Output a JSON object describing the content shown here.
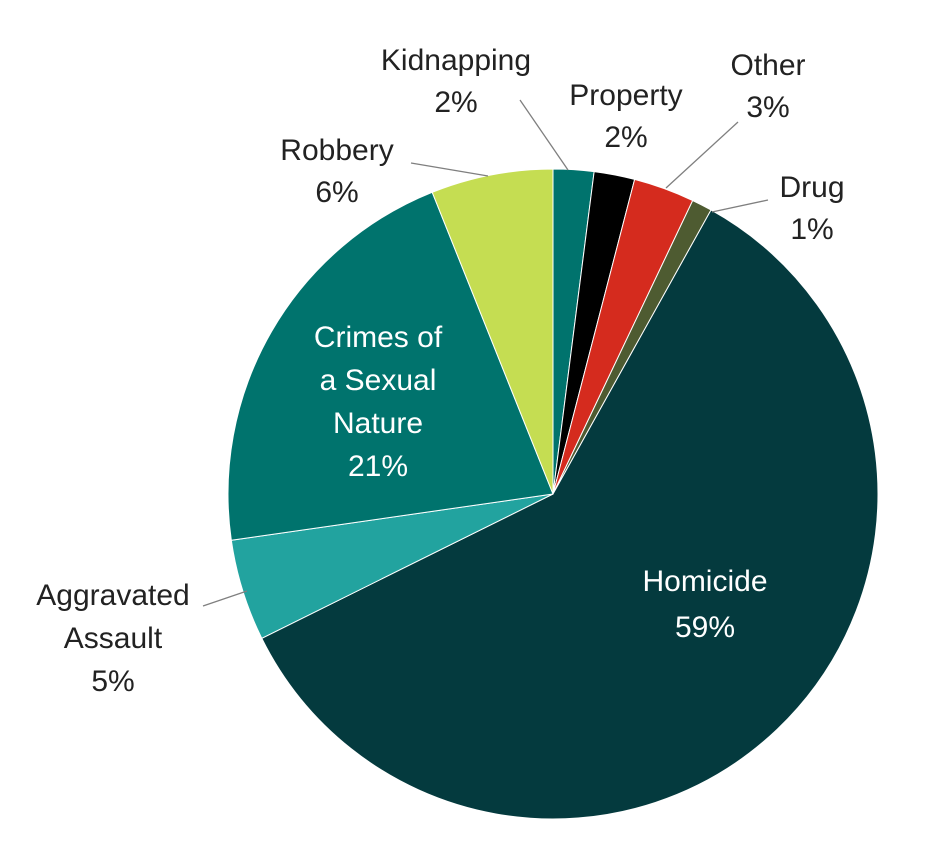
{
  "chart_data": {
    "type": "pie",
    "title": "",
    "slices": [
      {
        "label_lines": [
          "Kidnapping",
          "2%"
        ],
        "value": 2,
        "color": "#00736d"
      },
      {
        "label_lines": [
          "Property",
          "2%"
        ],
        "value": 2,
        "color": "#000000"
      },
      {
        "label_lines": [
          "Other",
          "3%"
        ],
        "value": 3,
        "color": "#d52b1e"
      },
      {
        "label_lines": [
          "Drug",
          "1%"
        ],
        "value": 1,
        "color": "#4e5b31"
      },
      {
        "label_lines": [
          "Homicide",
          "59%"
        ],
        "value": 59,
        "color": "#043a3e"
      },
      {
        "label_lines": [
          "Aggravated",
          "Assault",
          "5%"
        ],
        "value": 5,
        "color": "#22a39f"
      },
      {
        "label_lines": [
          "Crimes of",
          "a Sexual",
          "Nature",
          "21%"
        ],
        "value": 21,
        "color": "#00736d"
      },
      {
        "label_lines": [
          "Robbery",
          "6%"
        ],
        "value": 6,
        "color": "#c5dd52"
      }
    ]
  }
}
